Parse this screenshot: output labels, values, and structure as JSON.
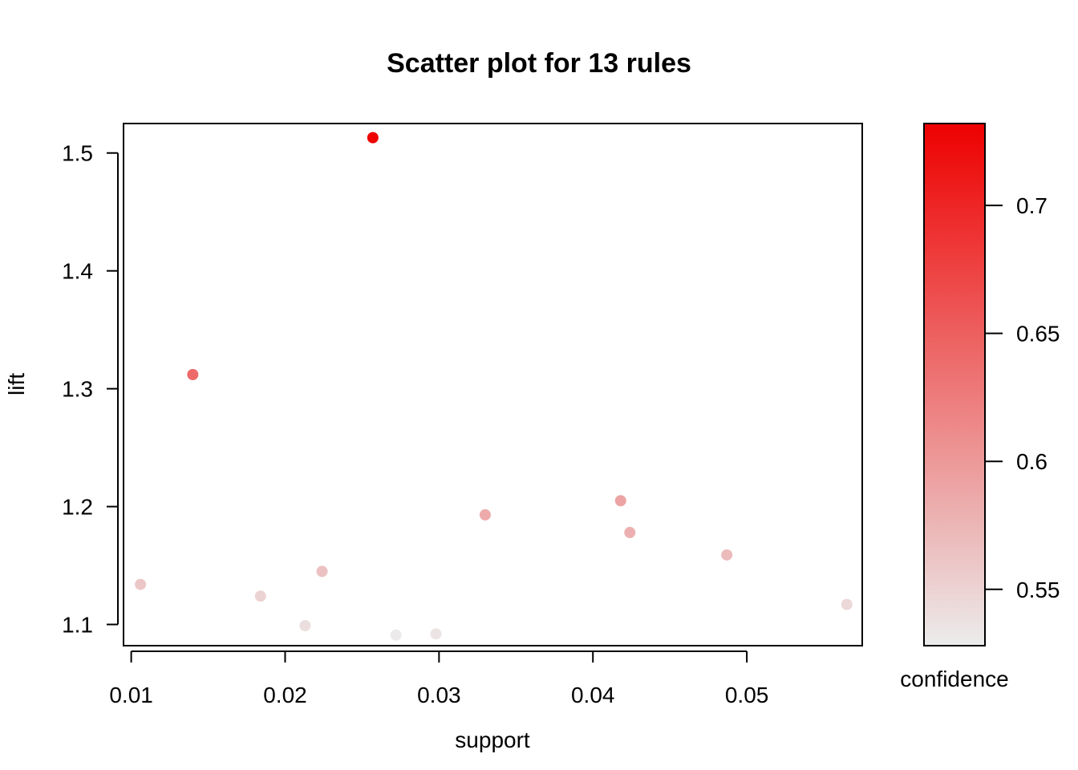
{
  "chart_data": {
    "type": "scatter",
    "title": "Scatter plot for 13 rules",
    "xlabel": "support",
    "ylabel": "lift",
    "xlim": [
      0.0095,
      0.0575
    ],
    "ylim": [
      1.082,
      1.525
    ],
    "xticks": [
      0.01,
      0.02,
      0.03,
      0.04,
      0.05
    ],
    "xtick_labels": [
      "0.01",
      "0.02",
      "0.03",
      "0.04",
      "0.05"
    ],
    "yticks": [
      1.1,
      1.2,
      1.3,
      1.4,
      1.5
    ],
    "ytick_labels": [
      "1.1",
      "1.2",
      "1.3",
      "1.4",
      "1.5"
    ],
    "grid": false,
    "points": [
      {
        "support": 0.0257,
        "lift": 1.513,
        "confidence": 0.73
      },
      {
        "support": 0.014,
        "lift": 1.312,
        "confidence": 0.64
      },
      {
        "support": 0.0106,
        "lift": 1.134,
        "confidence": 0.56
      },
      {
        "support": 0.0184,
        "lift": 1.124,
        "confidence": 0.55
      },
      {
        "support": 0.0213,
        "lift": 1.099,
        "confidence": 0.54
      },
      {
        "support": 0.0224,
        "lift": 1.145,
        "confidence": 0.565
      },
      {
        "support": 0.0272,
        "lift": 1.091,
        "confidence": 0.53
      },
      {
        "support": 0.0298,
        "lift": 1.092,
        "confidence": 0.535
      },
      {
        "support": 0.033,
        "lift": 1.193,
        "confidence": 0.585
      },
      {
        "support": 0.0418,
        "lift": 1.205,
        "confidence": 0.59
      },
      {
        "support": 0.0424,
        "lift": 1.178,
        "confidence": 0.58
      },
      {
        "support": 0.0487,
        "lift": 1.159,
        "confidence": 0.57
      },
      {
        "support": 0.0565,
        "lift": 1.117,
        "confidence": 0.545
      }
    ],
    "color_scale": {
      "label": "confidence",
      "min": 0.528,
      "max": 0.732,
      "low_color": "#ececec",
      "high_color": "#ee0000",
      "ticks": [
        0.55,
        0.6,
        0.65,
        0.7
      ],
      "tick_labels": [
        "0.55",
        "0.6",
        "0.65",
        "0.7"
      ]
    }
  }
}
